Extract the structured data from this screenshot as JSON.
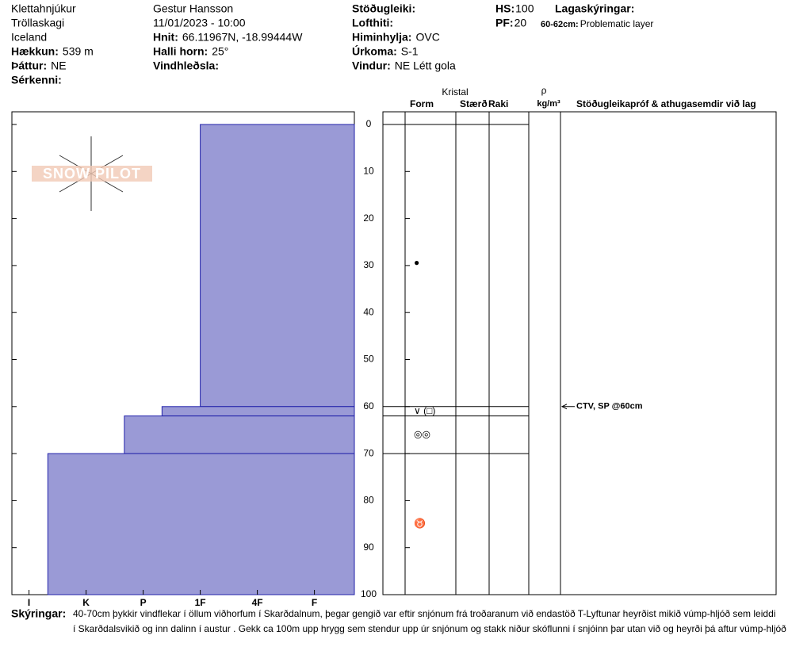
{
  "header": {
    "columns": [
      [
        {
          "value": "Klettahnjúkur"
        },
        {
          "value": "Tröllaskagi"
        },
        {
          "value": "Iceland"
        },
        {
          "label": "Hækkun:",
          "value": "539 m"
        },
        {
          "label": "Þáttur:",
          "value": "NE"
        },
        {
          "label": "Sérkenni:"
        }
      ],
      [
        {
          "value": "Gestur Hansson"
        },
        {
          "value": "11/01/2023 - 10:00"
        },
        {
          "label": "Hnit:",
          "value": "66.11967N, -18.99444W"
        },
        {
          "label": "Halli horn:",
          "value": "25°"
        },
        {
          "label": "Vindhleðsla:"
        }
      ],
      [
        {
          "label": "Stöðugleiki:"
        },
        {
          "label": "Lofthiti:"
        },
        {
          "label": "Himinhylja:",
          "value": "OVC"
        },
        {
          "label": "Úrkoma:",
          "value": "S-1"
        },
        {
          "label": "Vindur:",
          "value": "NE Létt gola"
        }
      ],
      [
        {
          "label": "HS:",
          "value": 100
        },
        {
          "label": "PF:",
          "value": 20
        }
      ]
    ],
    "layer_notes": {
      "title": "Lagaskýringar:",
      "items": [
        {
          "depth": "60-62cm:",
          "text": "Problematic layer"
        }
      ]
    }
  },
  "profile": {
    "logo": "SNOW PILOT",
    "color": "#9a9ad6",
    "ylim": [
      0,
      100
    ],
    "yticks": [
      0,
      10,
      20,
      30,
      40,
      50,
      60,
      70,
      80,
      90,
      100
    ],
    "xlim": [
      6.3,
      0.3
    ],
    "xticks": [
      {
        "value": 6,
        "label": "I"
      },
      {
        "value": 5,
        "label": "K"
      },
      {
        "value": 4,
        "label": "P"
      },
      {
        "value": 3,
        "label": "1F"
      },
      {
        "value": 2,
        "label": "4F"
      },
      {
        "value": 1,
        "label": "F"
      }
    ],
    "layers": [
      {
        "top": 0,
        "bottom": 60,
        "hardness": 3
      },
      {
        "top": 60,
        "bottom": 62,
        "hardness": 3.67
      },
      {
        "top": 62,
        "bottom": 70,
        "hardness": 4.33
      },
      {
        "top": 70,
        "bottom": 100,
        "hardness": 5.67
      }
    ],
    "grains": [
      {
        "depth": 29.5,
        "form": "●"
      },
      {
        "depth": 61,
        "form": "∨ (□)"
      },
      {
        "depth": 66,
        "form": "◎◎"
      },
      {
        "depth": 85,
        "form": "♉"
      }
    ],
    "column_headers": {
      "crystal": "Kristal",
      "form": "Form",
      "size": "Stærð",
      "moisture": "Raki",
      "density": "ρ",
      "density_unit": "kg/m³",
      "tests": "Stöðugleikapróf & athugasemdir við lag"
    },
    "tests": [
      {
        "depth": 60,
        "text": "CTV, SP @60cm"
      }
    ]
  },
  "footer": {
    "label": "Skýringar:",
    "lines": [
      "40-70cm þykkir vindflekar í öllum viðhorfum í Skarðdalnum, þegar gengið var eftir snjónum frá troðaranum við endastöð T-Lyftunar heyrðist mikið vúmp-hljóð sem leiddi",
      "í Skarðdalsvikið og inn dalinn í austur . Gekk ca 100m upp hrygg sem stendur upp úr snjónum og stakk niður skóflunni í snjóinn þar utan við og heyrði þá aftur vúmp-hljóð"
    ]
  }
}
